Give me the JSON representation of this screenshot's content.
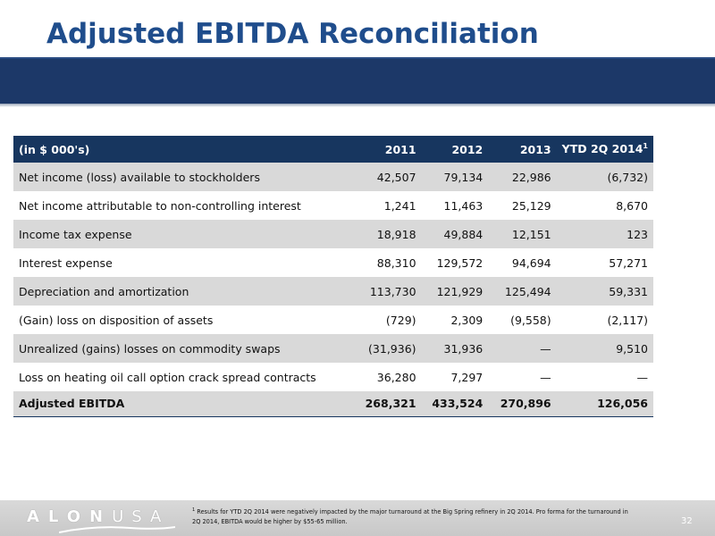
{
  "title": "Adjusted EBITDA Reconciliation",
  "table": {
    "headers": [
      "(in $ 000's)",
      "2011",
      "2012",
      "2013",
      "YTD 2Q 2014"
    ],
    "header_superscript": "1",
    "rows": [
      {
        "label": "Net income (loss) available to stockholders",
        "values": [
          "42,507",
          "79,134",
          "22,986",
          "(6,732)"
        ]
      },
      {
        "label": "Net income attributable to non-controlling interest",
        "values": [
          "1,241",
          "11,463",
          "25,129",
          "8,670"
        ]
      },
      {
        "label": "Income tax expense",
        "values": [
          "18,918",
          "49,884",
          "12,151",
          "123"
        ]
      },
      {
        "label": "Interest expense",
        "values": [
          "88,310",
          "129,572",
          "94,694",
          "57,271"
        ]
      },
      {
        "label": "Depreciation and amortization",
        "values": [
          "113,730",
          "121,929",
          "125,494",
          "59,331"
        ]
      },
      {
        "label": "(Gain) loss on disposition of assets",
        "values": [
          "(729)",
          "2,309",
          "(9,558)",
          "(2,117)"
        ]
      },
      {
        "label": "Unrealized (gains) losses on commodity swaps",
        "values": [
          "(31,936)",
          "31,936",
          "—",
          "9,510"
        ]
      },
      {
        "label": "Loss on heating oil call option crack spread contracts",
        "values": [
          "36,280",
          "7,297",
          "—",
          "—"
        ]
      }
    ],
    "total": {
      "label": "Adjusted EBITDA",
      "values": [
        "268,321",
        "433,524",
        "270,896",
        "126,056"
      ]
    }
  },
  "footer": {
    "logo_bold": "ALON",
    "logo_light": "USA",
    "footnote_marker": "1",
    "footnote_line1": "Results for YTD 2Q 2014 were negatively impacted by the major turnaround at the Big Spring refinery in 2Q 2014. Pro forma for the turnaround in",
    "footnote_line2": "2Q 2014, EBITDA would be higher by $55-65 million.",
    "page_number": "32"
  },
  "colors": {
    "title": "#1f4d8c",
    "banner": "#1c3868",
    "table_header": "#17365f",
    "row_shade": "#d9d9d9",
    "footer": "#d9d9d9"
  }
}
